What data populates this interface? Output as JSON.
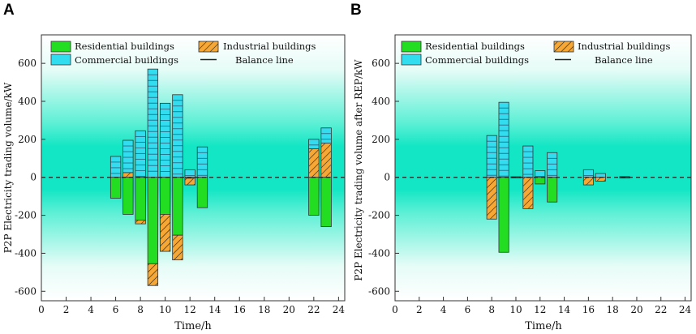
{
  "chart_data": [
    {
      "type": "bar",
      "panel": "A",
      "xlabel": "Time/h",
      "ylabel": "P2P Electricity trading volume/kW",
      "xlim": [
        0,
        24.5
      ],
      "ylim": [
        -650,
        750
      ],
      "xticks": [
        0,
        2,
        4,
        6,
        8,
        10,
        12,
        14,
        16,
        18,
        20,
        22,
        24
      ],
      "yticks": [
        -600,
        -400,
        -200,
        0,
        200,
        400,
        600
      ],
      "legend": {
        "residential": "Residential buildings",
        "industrial": "Industrial buildings",
        "commercial": "Commercial buildings",
        "balance": "Balance line"
      },
      "bars": [
        {
          "hour": 6,
          "residential": -110,
          "industrial": 0,
          "commercial": 110
        },
        {
          "hour": 7,
          "residential": -195,
          "industrial": 25,
          "commercial": 170
        },
        {
          "hour": 8,
          "residential": -225,
          "industrial": -20,
          "commercial": 245
        },
        {
          "hour": 9,
          "residential": -455,
          "industrial": -115,
          "commercial": 570
        },
        {
          "hour": 10,
          "residential": -195,
          "industrial": -195,
          "commercial": 390
        },
        {
          "hour": 11,
          "residential": -305,
          "industrial": -130,
          "commercial": 435
        },
        {
          "hour": 12,
          "residential": -5,
          "industrial": -35,
          "commercial": 40
        },
        {
          "hour": 13,
          "residential": -160,
          "industrial": 0,
          "commercial": 160
        },
        {
          "hour": 22,
          "residential": -200,
          "industrial": 150,
          "commercial": 50
        },
        {
          "hour": 23,
          "residential": -260,
          "industrial": 180,
          "commercial": 80
        }
      ]
    },
    {
      "type": "bar",
      "panel": "B",
      "xlabel": "Time/h",
      "ylabel": "P2P Electricity trading volume after REP/kW",
      "xlim": [
        0,
        24.5
      ],
      "ylim": [
        -650,
        750
      ],
      "xticks": [
        0,
        2,
        4,
        6,
        8,
        10,
        12,
        14,
        16,
        18,
        20,
        22,
        24
      ],
      "yticks": [
        -600,
        -400,
        -200,
        0,
        200,
        400,
        600
      ],
      "legend": {
        "residential": "Residential buildings",
        "industrial": "Industrial buildings",
        "commercial": "Commercial buildings",
        "balance": "Balance line"
      },
      "bars": [
        {
          "hour": 8,
          "residential": 0,
          "industrial": -220,
          "commercial": 220
        },
        {
          "hour": 9,
          "residential": -395,
          "industrial": 0,
          "commercial": 395
        },
        {
          "hour": 10,
          "residential": -3,
          "industrial": 0,
          "commercial": 3
        },
        {
          "hour": 11,
          "residential": 0,
          "industrial": -165,
          "commercial": 165
        },
        {
          "hour": 12,
          "residential": -35,
          "industrial": 0,
          "commercial": 35
        },
        {
          "hour": 13,
          "residential": -130,
          "industrial": 0,
          "commercial": 130
        },
        {
          "hour": 16,
          "residential": 0,
          "industrial": -40,
          "commercial": 40
        },
        {
          "hour": 17,
          "residential": 0,
          "industrial": -20,
          "commercial": 20
        },
        {
          "hour": 19,
          "residential": -4,
          "industrial": 0,
          "commercial": 4
        }
      ]
    }
  ],
  "colors": {
    "residential": "#22dd22",
    "commercial": "#33ddf0",
    "industrial": "#f7a733",
    "band_center": "#12e6c4",
    "band_outer": "#d8fbf3",
    "balance_line": "#222222"
  }
}
